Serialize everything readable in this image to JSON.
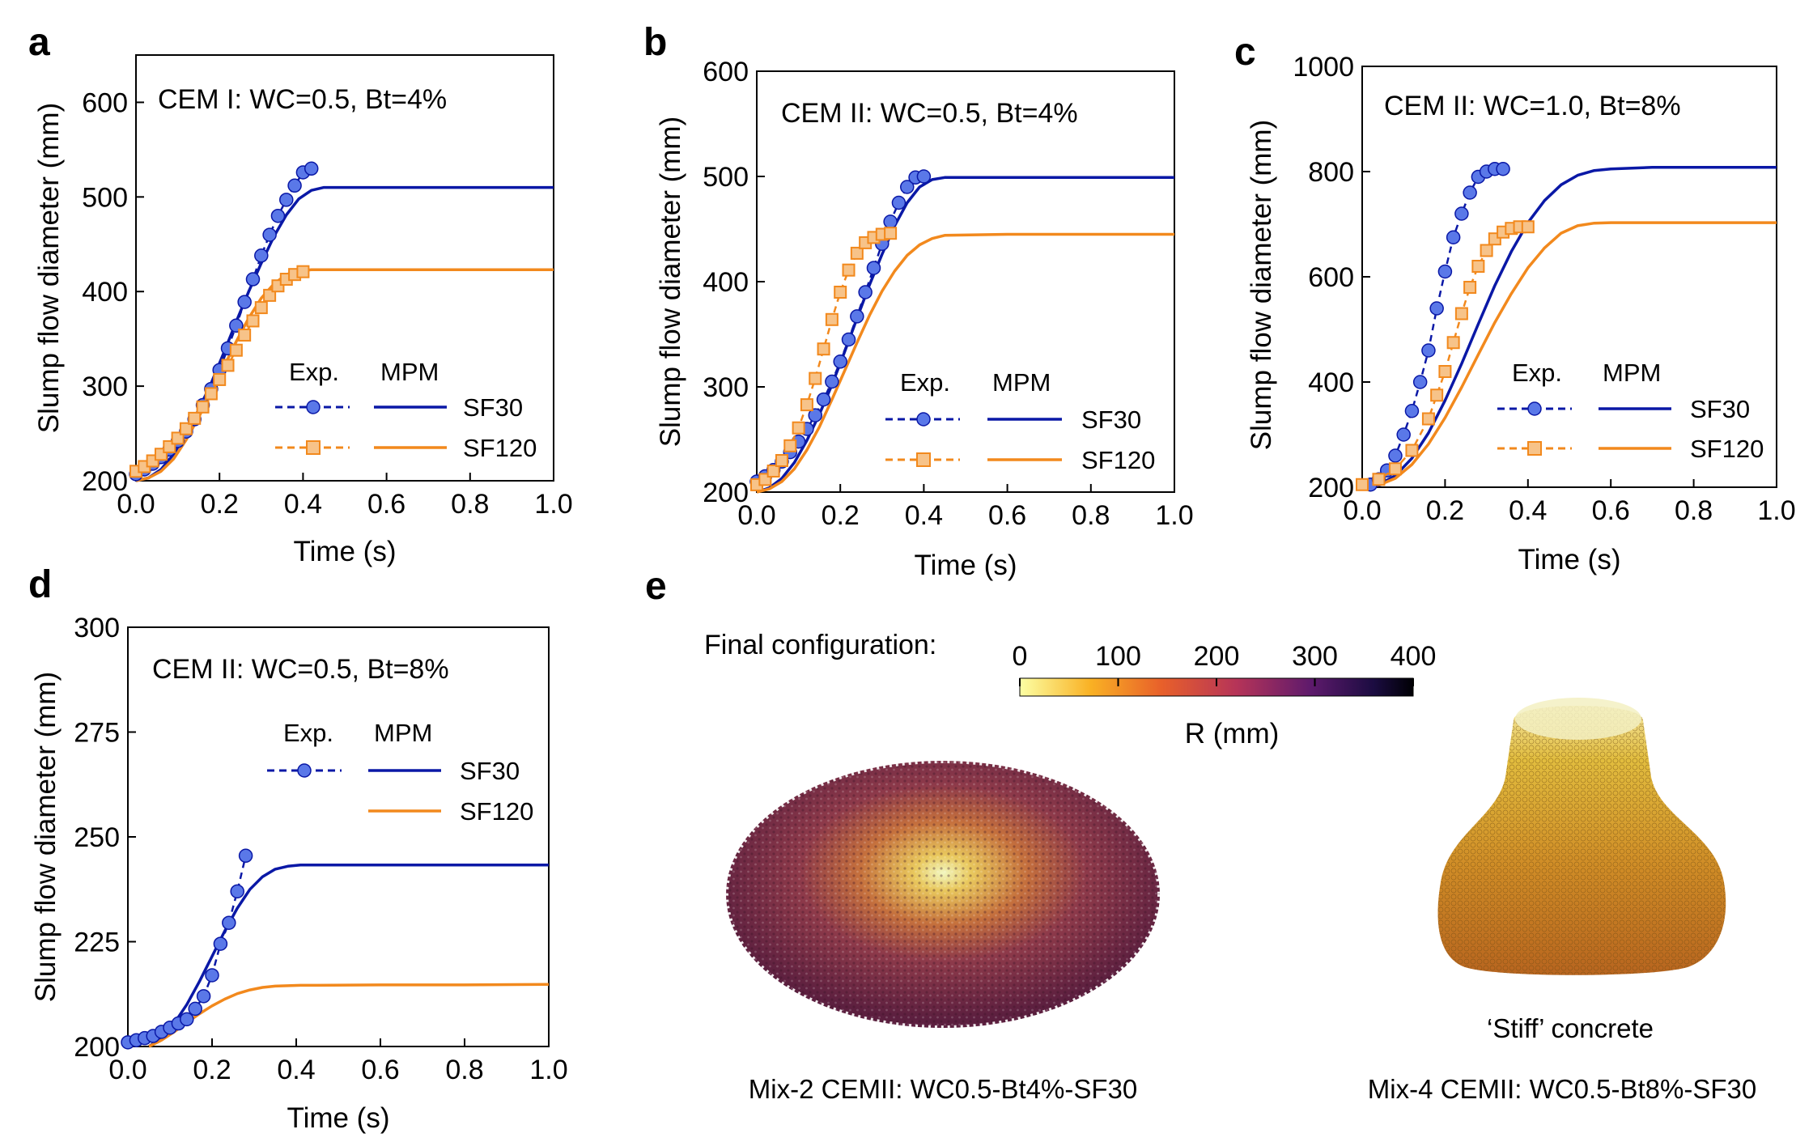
{
  "colors": {
    "sf30": "#0a18a6",
    "sf120": "#f2891d",
    "marker_blue": "#5a78e8",
    "marker_orange": "#f7c389"
  },
  "legend": {
    "exp": "Exp.",
    "mpm": "MPM",
    "sf30": "SF30",
    "sf120": "SF120"
  },
  "chart_data": [
    {
      "panel": "a",
      "type": "line",
      "annotation": "CEM I: WC=0.5, Bt=4%",
      "xlabel": "Time (s)",
      "ylabel": "Slump flow diameter (mm)",
      "xlim": [
        0,
        1
      ],
      "ylim": [
        200,
        650
      ],
      "xticks": [
        "0.0",
        "0.2",
        "0.4",
        "0.6",
        "0.8",
        "1.0"
      ],
      "yticks": [
        "200",
        "300",
        "400",
        "500",
        "600"
      ],
      "yticks_values": [
        200,
        300,
        400,
        500,
        600
      ],
      "show_sf120_exp": true,
      "series": [
        {
          "name": "SF30",
          "kind": "MPM",
          "x": [
            0,
            0.03,
            0.06,
            0.09,
            0.12,
            0.15,
            0.18,
            0.21,
            0.24,
            0.27,
            0.3,
            0.33,
            0.36,
            0.39,
            0.42,
            0.45,
            0.48,
            0.6,
            0.8,
            1.0
          ],
          "y": [
            200,
            203,
            212,
            228,
            250,
            275,
            303,
            335,
            368,
            400,
            430,
            458,
            481,
            498,
            507,
            510,
            510,
            510,
            510,
            510
          ]
        },
        {
          "name": "SF120",
          "kind": "MPM",
          "x": [
            0,
            0.03,
            0.06,
            0.09,
            0.12,
            0.15,
            0.18,
            0.21,
            0.24,
            0.27,
            0.3,
            0.33,
            0.36,
            0.39,
            0.42,
            0.6,
            0.8,
            1.0
          ],
          "y": [
            200,
            203,
            210,
            223,
            243,
            267,
            293,
            320,
            347,
            372,
            393,
            408,
            418,
            422,
            423,
            423,
            423,
            423
          ]
        },
        {
          "name": "SF30",
          "kind": "Exp.",
          "x": [
            0.0,
            0.02,
            0.04,
            0.06,
            0.08,
            0.1,
            0.12,
            0.14,
            0.16,
            0.18,
            0.2,
            0.22,
            0.24,
            0.26,
            0.28,
            0.3,
            0.32,
            0.34,
            0.36,
            0.38,
            0.4,
            0.42
          ],
          "y": [
            207,
            212,
            218,
            225,
            233,
            242,
            252,
            265,
            280,
            297,
            317,
            340,
            364,
            389,
            413,
            438,
            460,
            480,
            497,
            512,
            526,
            530
          ]
        },
        {
          "name": "SF120",
          "kind": "Exp.",
          "x": [
            0.0,
            0.02,
            0.04,
            0.06,
            0.08,
            0.1,
            0.12,
            0.14,
            0.16,
            0.18,
            0.2,
            0.22,
            0.24,
            0.26,
            0.28,
            0.3,
            0.32,
            0.34,
            0.36,
            0.38,
            0.4
          ],
          "y": [
            210,
            215,
            221,
            228,
            236,
            245,
            255,
            266,
            278,
            292,
            307,
            322,
            338,
            354,
            369,
            383,
            396,
            406,
            413,
            418,
            421
          ]
        }
      ]
    },
    {
      "panel": "b",
      "type": "line",
      "annotation": "CEM II: WC=0.5, Bt=4%",
      "xlabel": "Time (s)",
      "ylabel": "Slump flow diameter (mm)",
      "xlim": [
        0,
        1
      ],
      "ylim": [
        200,
        600
      ],
      "xticks": [
        "0.0",
        "0.2",
        "0.4",
        "0.6",
        "0.8",
        "1.0"
      ],
      "yticks": [
        "200",
        "300",
        "400",
        "500",
        "600"
      ],
      "yticks_values": [
        200,
        300,
        400,
        500,
        600
      ],
      "show_sf120_exp": true,
      "series": [
        {
          "name": "SF30",
          "kind": "MPM",
          "x": [
            0,
            0.03,
            0.06,
            0.09,
            0.12,
            0.15,
            0.18,
            0.21,
            0.24,
            0.27,
            0.3,
            0.33,
            0.36,
            0.39,
            0.42,
            0.45,
            0.5,
            0.6,
            0.8,
            1.0
          ],
          "y": [
            200,
            204,
            213,
            228,
            249,
            274,
            302,
            333,
            365,
            397,
            426,
            453,
            475,
            490,
            497,
            499,
            499,
            499,
            499,
            499
          ]
        },
        {
          "name": "SF120",
          "kind": "MPM",
          "x": [
            0,
            0.03,
            0.06,
            0.09,
            0.12,
            0.15,
            0.18,
            0.21,
            0.24,
            0.27,
            0.3,
            0.33,
            0.36,
            0.39,
            0.42,
            0.45,
            0.6,
            0.8,
            1.0
          ],
          "y": [
            200,
            203,
            210,
            222,
            240,
            262,
            288,
            315,
            342,
            368,
            391,
            410,
            425,
            435,
            441,
            444,
            445,
            445,
            445
          ]
        },
        {
          "name": "SF30",
          "kind": "Exp.",
          "x": [
            0.0,
            0.02,
            0.04,
            0.06,
            0.08,
            0.1,
            0.12,
            0.14,
            0.16,
            0.18,
            0.2,
            0.22,
            0.24,
            0.26,
            0.28,
            0.3,
            0.32,
            0.34,
            0.36,
            0.38,
            0.4
          ],
          "y": [
            210,
            215,
            221,
            229,
            238,
            248,
            260,
            273,
            288,
            305,
            324,
            345,
            367,
            390,
            413,
            436,
            457,
            475,
            490,
            499,
            500
          ]
        },
        {
          "name": "SF120",
          "kind": "Exp.",
          "x": [
            0.0,
            0.02,
            0.04,
            0.06,
            0.08,
            0.1,
            0.12,
            0.14,
            0.16,
            0.18,
            0.2,
            0.22,
            0.24,
            0.26,
            0.28,
            0.3,
            0.32
          ],
          "y": [
            207,
            212,
            220,
            230,
            244,
            261,
            283,
            308,
            336,
            364,
            390,
            411,
            427,
            437,
            442,
            445,
            446
          ]
        }
      ]
    },
    {
      "panel": "c",
      "type": "line",
      "annotation": "CEM II: WC=1.0, Bt=8%",
      "xlabel": "Time (s)",
      "ylabel": "Slump flow diameter (mm)",
      "xlim": [
        0,
        1
      ],
      "ylim": [
        200,
        1000
      ],
      "xticks": [
        "0.0",
        "0.2",
        "0.4",
        "0.6",
        "0.8",
        "1.0"
      ],
      "yticks": [
        "200",
        "400",
        "600",
        "800",
        "1000"
      ],
      "yticks_values": [
        200,
        400,
        600,
        800,
        1000
      ],
      "show_sf120_exp": true,
      "series": [
        {
          "name": "SF30",
          "kind": "MPM",
          "x": [
            0,
            0.04,
            0.08,
            0.12,
            0.16,
            0.2,
            0.24,
            0.28,
            0.32,
            0.36,
            0.4,
            0.44,
            0.48,
            0.52,
            0.56,
            0.6,
            0.7,
            0.8,
            1.0
          ],
          "y": [
            200,
            205,
            222,
            255,
            303,
            365,
            435,
            510,
            583,
            648,
            703,
            745,
            775,
            793,
            802,
            805,
            808,
            808,
            808
          ]
        },
        {
          "name": "SF120",
          "kind": "MPM",
          "x": [
            0,
            0.04,
            0.08,
            0.12,
            0.16,
            0.2,
            0.24,
            0.28,
            0.32,
            0.36,
            0.4,
            0.44,
            0.48,
            0.52,
            0.56,
            0.6,
            0.8,
            1.0
          ],
          "y": [
            200,
            204,
            217,
            243,
            282,
            332,
            390,
            452,
            513,
            568,
            617,
            655,
            683,
            697,
            702,
            703,
            703,
            703
          ]
        },
        {
          "name": "SF30",
          "kind": "Exp.",
          "x": [
            0.02,
            0.04,
            0.06,
            0.08,
            0.1,
            0.12,
            0.14,
            0.16,
            0.18,
            0.2,
            0.22,
            0.24,
            0.26,
            0.28,
            0.3,
            0.32,
            0.34
          ],
          "y": [
            205,
            215,
            232,
            260,
            300,
            345,
            400,
            460,
            540,
            610,
            675,
            720,
            760,
            790,
            800,
            805,
            805
          ]
        },
        {
          "name": "SF120",
          "kind": "Exp.",
          "x": [
            0.0,
            0.04,
            0.08,
            0.12,
            0.16,
            0.18,
            0.2,
            0.22,
            0.24,
            0.26,
            0.28,
            0.3,
            0.32,
            0.34,
            0.36,
            0.38,
            0.4
          ],
          "y": [
            205,
            215,
            235,
            270,
            330,
            375,
            420,
            475,
            530,
            580,
            620,
            650,
            672,
            685,
            692,
            695,
            695
          ]
        }
      ]
    },
    {
      "panel": "d",
      "type": "line",
      "annotation": "CEM II: WC=0.5, Bt=8%",
      "xlabel": "Time (s)",
      "ylabel": "Slump flow diameter (mm)",
      "xlim": [
        0,
        1
      ],
      "ylim": [
        200,
        300
      ],
      "xticks": [
        "0.0",
        "0.2",
        "0.4",
        "0.6",
        "0.8",
        "1.0"
      ],
      "yticks": [
        "200",
        "225",
        "250",
        "275",
        "300"
      ],
      "yticks_values": [
        200,
        225,
        250,
        275,
        300
      ],
      "show_sf120_exp": false,
      "series": [
        {
          "name": "SF30",
          "kind": "MPM",
          "x": [
            0.05,
            0.08,
            0.11,
            0.14,
            0.17,
            0.2,
            0.23,
            0.26,
            0.29,
            0.32,
            0.35,
            0.38,
            0.41,
            0.45,
            0.6,
            0.8,
            1.0
          ],
          "y": [
            200,
            202,
            205.5,
            210,
            215.5,
            221.5,
            227.5,
            233,
            237.5,
            240.5,
            242.3,
            243,
            243.3,
            243.3,
            243.3,
            243.3,
            243.3
          ]
        },
        {
          "name": "SF120",
          "kind": "MPM",
          "x": [
            0.05,
            0.08,
            0.11,
            0.14,
            0.17,
            0.2,
            0.23,
            0.26,
            0.29,
            0.32,
            0.35,
            0.38,
            0.41,
            0.45,
            0.6,
            0.8,
            1.0
          ],
          "y": [
            200,
            201.5,
            203.5,
            205.7,
            207.8,
            209.7,
            211.3,
            212.6,
            213.5,
            214.1,
            214.4,
            214.5,
            214.6,
            214.6,
            214.7,
            214.7,
            214.8
          ]
        },
        {
          "name": "SF30",
          "kind": "Exp.",
          "x": [
            0.0,
            0.02,
            0.04,
            0.06,
            0.08,
            0.1,
            0.12,
            0.14,
            0.16,
            0.18,
            0.2,
            0.22,
            0.24,
            0.26,
            0.28
          ],
          "y": [
            201,
            201.5,
            202,
            202.5,
            203.5,
            204.5,
            205.5,
            206.5,
            209,
            212,
            217,
            224.5,
            229.5,
            237,
            245.5
          ]
        }
      ]
    }
  ],
  "panel_e": {
    "letter": "e",
    "final_configuration_label": "Final configuration:",
    "colorbar": {
      "ticks": [
        "0",
        "100",
        "200",
        "300",
        "400"
      ],
      "label": "R (mm)",
      "min": 0,
      "max": 400,
      "colormap": "inferno_r"
    },
    "stiff_label": "‘Stiff’ concrete",
    "caption_left": "Mix-2 CEMII: WC0.5-Bt4%-SF30",
    "caption_right": "Mix-4 CEMII: WC0.5-Bt8%-SF30"
  }
}
